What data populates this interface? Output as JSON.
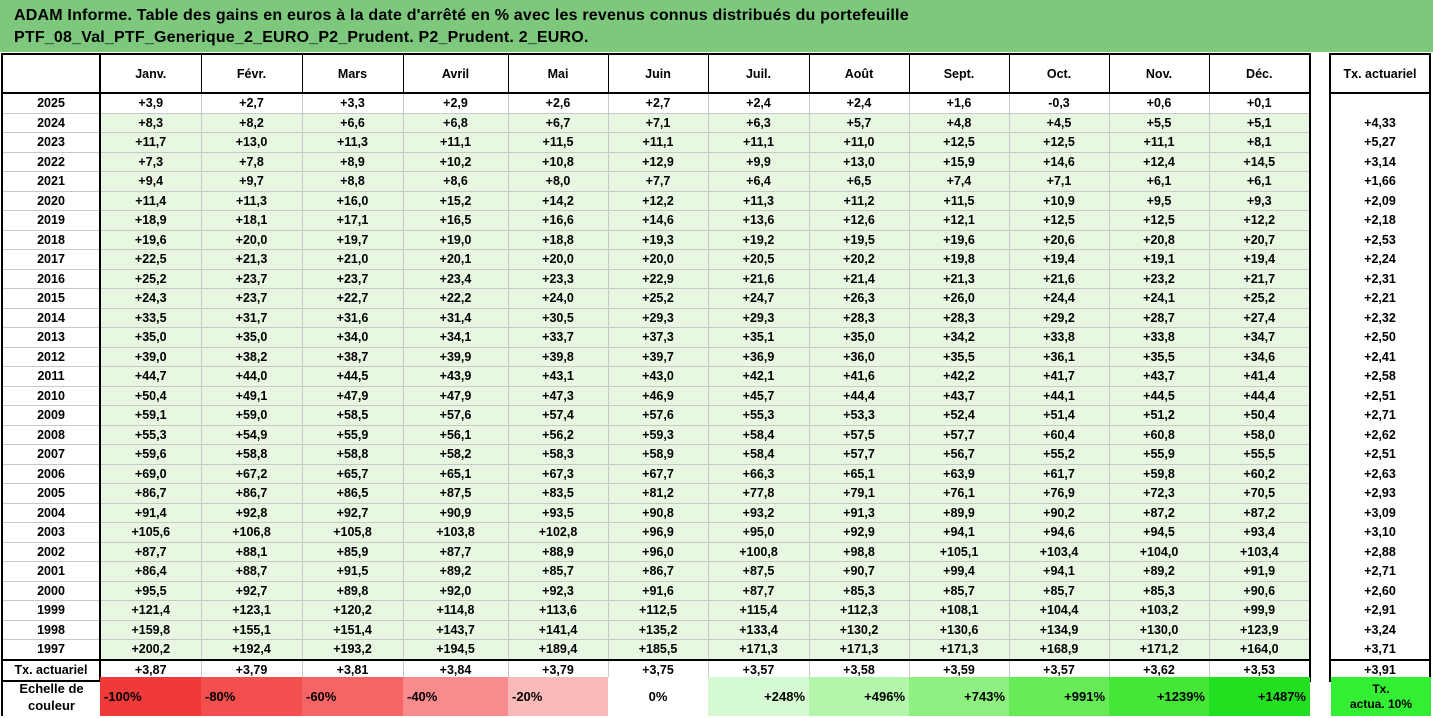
{
  "title": {
    "line1": "ADAM Informe. Table des gains en euros à la date d'arrêté en % avec les revenus connus distribués du portefeuille",
    "line2": "PTF_08_Val_PTF_Generique_2_EURO_P2_Prudent. P2_Prudent. 2_EURO."
  },
  "months": [
    "Janv.",
    "Févr.",
    "Mars",
    "Avril",
    "Mai",
    "Juin",
    "Juil.",
    "Août",
    "Sept.",
    "Oct.",
    "Nov.",
    "Déc."
  ],
  "side_header": "Tx. actuariel",
  "rows": [
    {
      "year": "2025",
      "values": [
        "+3,9",
        "+2,7",
        "+3,3",
        "+2,9",
        "+2,6",
        "+2,7",
        "+2,4",
        "+2,4",
        "+1,6",
        "-0,3",
        "+0,6",
        "+0,1"
      ],
      "tx": ""
    },
    {
      "year": "2024",
      "values": [
        "+8,3",
        "+8,2",
        "+6,6",
        "+6,8",
        "+6,7",
        "+7,1",
        "+6,3",
        "+5,7",
        "+4,8",
        "+4,5",
        "+5,5",
        "+5,1"
      ],
      "tx": "+4,33"
    },
    {
      "year": "2023",
      "values": [
        "+11,7",
        "+13,0",
        "+11,3",
        "+11,1",
        "+11,5",
        "+11,1",
        "+11,1",
        "+11,0",
        "+12,5",
        "+12,5",
        "+11,1",
        "+8,1"
      ],
      "tx": "+5,27"
    },
    {
      "year": "2022",
      "values": [
        "+7,3",
        "+7,8",
        "+8,9",
        "+10,2",
        "+10,8",
        "+12,9",
        "+9,9",
        "+13,0",
        "+15,9",
        "+14,6",
        "+12,4",
        "+14,5"
      ],
      "tx": "+3,14"
    },
    {
      "year": "2021",
      "values": [
        "+9,4",
        "+9,7",
        "+8,8",
        "+8,6",
        "+8,0",
        "+7,7",
        "+6,4",
        "+6,5",
        "+7,4",
        "+7,1",
        "+6,1",
        "+6,1"
      ],
      "tx": "+1,66"
    },
    {
      "year": "2020",
      "values": [
        "+11,4",
        "+11,3",
        "+16,0",
        "+15,2",
        "+14,2",
        "+12,2",
        "+11,3",
        "+11,2",
        "+11,5",
        "+10,9",
        "+9,5",
        "+9,3"
      ],
      "tx": "+2,09"
    },
    {
      "year": "2019",
      "values": [
        "+18,9",
        "+18,1",
        "+17,1",
        "+16,5",
        "+16,6",
        "+14,6",
        "+13,6",
        "+12,6",
        "+12,1",
        "+12,5",
        "+12,5",
        "+12,2"
      ],
      "tx": "+2,18"
    },
    {
      "year": "2018",
      "values": [
        "+19,6",
        "+20,0",
        "+19,7",
        "+19,0",
        "+18,8",
        "+19,3",
        "+19,2",
        "+19,5",
        "+19,6",
        "+20,6",
        "+20,8",
        "+20,7"
      ],
      "tx": "+2,53"
    },
    {
      "year": "2017",
      "values": [
        "+22,5",
        "+21,3",
        "+21,0",
        "+20,1",
        "+20,0",
        "+20,0",
        "+20,5",
        "+20,2",
        "+19,8",
        "+19,4",
        "+19,1",
        "+19,4"
      ],
      "tx": "+2,24"
    },
    {
      "year": "2016",
      "values": [
        "+25,2",
        "+23,7",
        "+23,7",
        "+23,4",
        "+23,3",
        "+22,9",
        "+21,6",
        "+21,4",
        "+21,3",
        "+21,6",
        "+23,2",
        "+21,7"
      ],
      "tx": "+2,31"
    },
    {
      "year": "2015",
      "values": [
        "+24,3",
        "+23,7",
        "+22,7",
        "+22,2",
        "+24,0",
        "+25,2",
        "+24,7",
        "+26,3",
        "+26,0",
        "+24,4",
        "+24,1",
        "+25,2"
      ],
      "tx": "+2,21"
    },
    {
      "year": "2014",
      "values": [
        "+33,5",
        "+31,7",
        "+31,6",
        "+31,4",
        "+30,5",
        "+29,3",
        "+29,3",
        "+28,3",
        "+28,3",
        "+29,2",
        "+28,7",
        "+27,4"
      ],
      "tx": "+2,32"
    },
    {
      "year": "2013",
      "values": [
        "+35,0",
        "+35,0",
        "+34,0",
        "+34,1",
        "+33,7",
        "+37,3",
        "+35,1",
        "+35,0",
        "+34,2",
        "+33,8",
        "+33,8",
        "+34,7"
      ],
      "tx": "+2,50"
    },
    {
      "year": "2012",
      "values": [
        "+39,0",
        "+38,2",
        "+38,7",
        "+39,9",
        "+39,8",
        "+39,7",
        "+36,9",
        "+36,0",
        "+35,5",
        "+36,1",
        "+35,5",
        "+34,6"
      ],
      "tx": "+2,41"
    },
    {
      "year": "2011",
      "values": [
        "+44,7",
        "+44,0",
        "+44,5",
        "+43,9",
        "+43,1",
        "+43,0",
        "+42,1",
        "+41,6",
        "+42,2",
        "+41,7",
        "+43,7",
        "+41,4"
      ],
      "tx": "+2,58"
    },
    {
      "year": "2010",
      "values": [
        "+50,4",
        "+49,1",
        "+47,9",
        "+47,9",
        "+47,3",
        "+46,9",
        "+45,7",
        "+44,4",
        "+43,7",
        "+44,1",
        "+44,5",
        "+44,4"
      ],
      "tx": "+2,51"
    },
    {
      "year": "2009",
      "values": [
        "+59,1",
        "+59,0",
        "+58,5",
        "+57,6",
        "+57,4",
        "+57,6",
        "+55,3",
        "+53,3",
        "+52,4",
        "+51,4",
        "+51,2",
        "+50,4"
      ],
      "tx": "+2,71"
    },
    {
      "year": "2008",
      "values": [
        "+55,3",
        "+54,9",
        "+55,9",
        "+56,1",
        "+56,2",
        "+59,3",
        "+58,4",
        "+57,5",
        "+57,7",
        "+60,4",
        "+60,8",
        "+58,0"
      ],
      "tx": "+2,62"
    },
    {
      "year": "2007",
      "values": [
        "+59,6",
        "+58,8",
        "+58,8",
        "+58,2",
        "+58,3",
        "+58,9",
        "+58,4",
        "+57,7",
        "+56,7",
        "+55,2",
        "+55,9",
        "+55,5"
      ],
      "tx": "+2,51"
    },
    {
      "year": "2006",
      "values": [
        "+69,0",
        "+67,2",
        "+65,7",
        "+65,1",
        "+67,3",
        "+67,7",
        "+66,3",
        "+65,1",
        "+63,9",
        "+61,7",
        "+59,8",
        "+60,2"
      ],
      "tx": "+2,63"
    },
    {
      "year": "2005",
      "values": [
        "+86,7",
        "+86,7",
        "+86,5",
        "+87,5",
        "+83,5",
        "+81,2",
        "+77,8",
        "+79,1",
        "+76,1",
        "+76,9",
        "+72,3",
        "+70,5"
      ],
      "tx": "+2,93"
    },
    {
      "year": "2004",
      "values": [
        "+91,4",
        "+92,8",
        "+92,7",
        "+90,9",
        "+93,5",
        "+90,8",
        "+93,2",
        "+91,3",
        "+89,9",
        "+90,2",
        "+87,2",
        "+87,2"
      ],
      "tx": "+3,09"
    },
    {
      "year": "2003",
      "values": [
        "+105,6",
        "+106,8",
        "+105,8",
        "+103,8",
        "+102,8",
        "+96,9",
        "+95,0",
        "+92,9",
        "+94,1",
        "+94,6",
        "+94,5",
        "+93,4"
      ],
      "tx": "+3,10"
    },
    {
      "year": "2002",
      "values": [
        "+87,7",
        "+88,1",
        "+85,9",
        "+87,7",
        "+88,9",
        "+96,0",
        "+100,8",
        "+98,8",
        "+105,1",
        "+103,4",
        "+104,0",
        "+103,4"
      ],
      "tx": "+2,88"
    },
    {
      "year": "2001",
      "values": [
        "+86,4",
        "+88,7",
        "+91,5",
        "+89,2",
        "+85,7",
        "+86,7",
        "+87,5",
        "+90,7",
        "+99,4",
        "+94,1",
        "+89,2",
        "+91,9"
      ],
      "tx": "+2,71"
    },
    {
      "year": "2000",
      "values": [
        "+95,5",
        "+92,7",
        "+89,8",
        "+92,0",
        "+92,3",
        "+91,6",
        "+87,7",
        "+85,3",
        "+85,7",
        "+85,7",
        "+85,3",
        "+90,6"
      ],
      "tx": "+2,60"
    },
    {
      "year": "1999",
      "values": [
        "+121,4",
        "+123,1",
        "+120,2",
        "+114,8",
        "+113,6",
        "+112,5",
        "+115,4",
        "+112,3",
        "+108,1",
        "+104,4",
        "+103,2",
        "+99,9"
      ],
      "tx": "+2,91"
    },
    {
      "year": "1998",
      "values": [
        "+159,8",
        "+155,1",
        "+151,4",
        "+143,7",
        "+141,4",
        "+135,2",
        "+133,4",
        "+130,2",
        "+130,6",
        "+134,9",
        "+130,0",
        "+123,9"
      ],
      "tx": "+3,24"
    },
    {
      "year": "1997",
      "values": [
        "+200,2",
        "+192,4",
        "+193,2",
        "+194,5",
        "+189,4",
        "+185,5",
        "+171,3",
        "+171,3",
        "+171,3",
        "+168,9",
        "+171,2",
        "+164,0"
      ],
      "tx": "+3,71"
    }
  ],
  "tx_row": {
    "label": "Tx. actuariel",
    "values": [
      "+3,87",
      "+3,79",
      "+3,81",
      "+3,84",
      "+3,79",
      "+3,75",
      "+3,57",
      "+3,58",
      "+3,59",
      "+3,57",
      "+3,62",
      "+3,53"
    ],
    "total": "+3,91"
  },
  "color_scale": {
    "label_line1": "Echelle de",
    "label_line2": "couleur",
    "items": [
      {
        "label": "-100%",
        "color": "#f03a3a",
        "kind": "neg"
      },
      {
        "label": "-80%",
        "color": "#f34f4f",
        "kind": "neg"
      },
      {
        "label": "-60%",
        "color": "#f56565",
        "kind": "neg"
      },
      {
        "label": "-40%",
        "color": "#f88b8b",
        "kind": "neg"
      },
      {
        "label": "-20%",
        "color": "#fbbaba",
        "kind": "neg"
      },
      {
        "label": "0%",
        "color": "#ffffff",
        "kind": "mid"
      },
      {
        "label": "+248%",
        "color": "#d6fad1",
        "kind": "pos"
      },
      {
        "label": "+496%",
        "color": "#b3f5aa",
        "kind": "pos"
      },
      {
        "label": "+743%",
        "color": "#8ef080",
        "kind": "pos"
      },
      {
        "label": "+991%",
        "color": "#66ea55",
        "kind": "pos"
      },
      {
        "label": "+1239%",
        "color": "#44e638",
        "kind": "pos"
      },
      {
        "label": "+1487%",
        "color": "#22e01f",
        "kind": "pos"
      }
    ],
    "side_line1": "Tx.",
    "side_line2": "actua. 10%",
    "side_color": "#33ee33"
  }
}
